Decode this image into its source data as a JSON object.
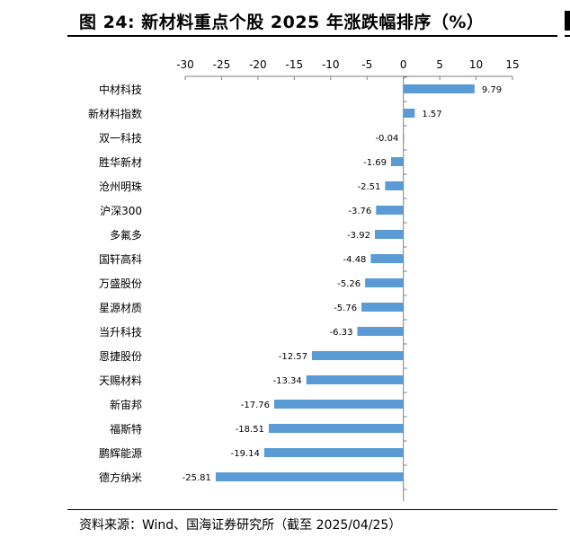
{
  "header": {
    "title": "图 24:  新材料重点个股 2025 年涨跌幅排序（%）"
  },
  "footer": {
    "source_label": "资料来源：",
    "source_text": "Wind、国海证券研究所（截至 2025/04/25）"
  },
  "chart_data": {
    "type": "bar",
    "orientation": "horizontal",
    "title": "",
    "xlabel": "",
    "ylabel": "",
    "xlim": [
      -30,
      15
    ],
    "xticks": [
      -30,
      -25,
      -20,
      -15,
      -10,
      -5,
      0,
      5,
      10,
      15
    ],
    "x_axis_position": "top",
    "grid": false,
    "bar_color": "#5b9bd5",
    "categories": [
      "中材科技",
      "新材料指数",
      "双一科技",
      "胜华新材",
      "沧州明珠",
      "沪深300",
      "多氟多",
      "国轩高科",
      "万盛股份",
      "星源材质",
      "当升科技",
      "恩捷股份",
      "天赐材料",
      "新宙邦",
      "福斯特",
      "鹏辉能源",
      "德方纳米"
    ],
    "values": [
      9.79,
      1.57,
      -0.04,
      -1.69,
      -2.51,
      -3.76,
      -3.92,
      -4.48,
      -5.26,
      -5.76,
      -6.33,
      -12.57,
      -13.34,
      -17.76,
      -18.51,
      -19.14,
      -25.81
    ],
    "labels": [
      "9.79",
      "1.57",
      "-0.04",
      "-1.69",
      "-2.51",
      "-3.76",
      "-3.92",
      "-4.48",
      "-5.26",
      "-5.76",
      "-6.33",
      "-12.57",
      "-13.34",
      "-17.76",
      "-18.51",
      "-19.14",
      "-25.81"
    ]
  }
}
